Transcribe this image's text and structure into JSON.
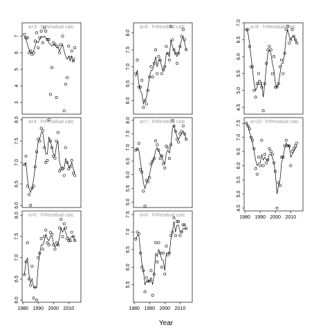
{
  "xlabel": "Year",
  "chart_data": [
    {
      "type": "line",
      "title": "a=3 : f=Residual catc",
      "xlim": [
        1979.5,
        2018
      ],
      "ylim": [
        2.3,
        7.8
      ],
      "yticks": [
        3,
        4,
        5,
        6,
        7
      ],
      "x": [
        1981,
        1982,
        1983,
        1984,
        1985,
        1986,
        1987,
        1988,
        1989,
        1990,
        1991,
        1992,
        1993,
        1994,
        1995,
        1996,
        1997,
        1998,
        1999,
        2000,
        2001,
        2002,
        2003,
        2004,
        2005,
        2006,
        2007,
        2008,
        2009,
        2010,
        2011,
        2012,
        2013,
        2014
      ],
      "series": [
        {
          "style": "points",
          "color": "#000000",
          "values": [
            7.1,
            6.9,
            6.9,
            6.0,
            6.1,
            5.9,
            6.0,
            6.7,
            7.2,
            6.3,
            6.9,
            7.3,
            6.6,
            7.5,
            7.3,
            6.8,
            6.8,
            3.5,
            5.1,
            6.6,
            6.5,
            3.3,
            6.4,
            6.0,
            6.5,
            7.0,
            2.5,
            4.1,
            4.5,
            6.4,
            5.7,
            6.1,
            5.5,
            6.3
          ]
        },
        {
          "style": "line",
          "color": "#000000",
          "values": [
            7.0,
            6.8,
            6.5,
            6.2,
            6.0,
            6.0,
            6.1,
            6.4,
            6.7,
            6.6,
            6.8,
            7.0,
            6.9,
            7.0,
            6.9,
            6.8,
            6.6,
            6.5,
            6.4,
            6.5,
            6.5,
            6.3,
            6.3,
            6.1,
            6.3,
            6.5,
            6.1,
            5.8,
            5.6,
            5.8,
            5.5,
            5.8,
            5.5,
            5.7
          ]
        }
      ]
    },
    {
      "type": "line",
      "title": "a=4 : f=Residual catc",
      "xlim": [
        1979.5,
        2018
      ],
      "ylim": [
        5.95,
        8.05
      ],
      "yticks": [
        {
          "value": 6,
          "label": "6.0"
        },
        6.5,
        {
          "value": 7,
          "label": "7.0"
        },
        7.5,
        {
          "value": 8,
          "label": "8.0"
        }
      ],
      "x": [
        1981,
        1982,
        1983,
        1984,
        1985,
        1986,
        1987,
        1988,
        1989,
        1990,
        1991,
        1992,
        1993,
        1994,
        1995,
        1996,
        1997,
        1998,
        1999,
        2000,
        2001,
        2002,
        2003,
        2004,
        2005,
        2006,
        2007,
        2008,
        2009,
        2010,
        2011,
        2012,
        2013,
        2014
      ],
      "series": [
        {
          "style": "points",
          "color": "#000000",
          "values": [
            6.95,
            7.15,
            6.45,
            6.25,
            6.0,
            6.4,
            6.45,
            6.9,
            7.25,
            7.55,
            7.5,
            7.8,
            7.75,
            7.35,
            7.0,
            7.05,
            8.0,
            7.5,
            7.35,
            7.15,
            7.1,
            7.5,
            7.7,
            6.8,
            6.85,
            6.85,
            6.7,
            7.35,
            7.0,
            6.85,
            6.9,
            7.05,
            6.75,
            6.7
          ]
        },
        {
          "style": "line",
          "color": "#000000",
          "values": [
            6.95,
            7.0,
            6.6,
            6.4,
            6.3,
            6.4,
            6.6,
            6.9,
            7.2,
            7.5,
            7.55,
            7.7,
            7.7,
            7.45,
            7.2,
            7.2,
            7.6,
            7.5,
            7.35,
            7.2,
            7.15,
            7.4,
            7.5,
            7.0,
            6.9,
            6.9,
            6.85,
            7.1,
            7.0,
            6.9,
            6.9,
            7.0,
            6.85,
            6.75
          ]
        }
      ]
    },
    {
      "type": "line",
      "title": "a=5 : f=Residual catc",
      "xlim": [
        1979.5,
        2018
      ],
      "ylim": [
        5.95,
        8.1
      ],
      "yticks": [
        {
          "value": 6,
          "label": "6.0"
        },
        6.5,
        {
          "value": 7,
          "label": "7.0"
        },
        7.5,
        {
          "value": 8,
          "label": "8.0"
        }
      ],
      "xticks": [
        1980,
        1990,
        2000,
        2010
      ],
      "x": [
        1981,
        1982,
        1983,
        1984,
        1985,
        1986,
        1987,
        1988,
        1989,
        1990,
        1991,
        1992,
        1993,
        1994,
        1995,
        1996,
        1997,
        1998,
        1999,
        2000,
        2001,
        2002,
        2003,
        2004,
        2005,
        2006,
        2007,
        2008,
        2009,
        2010,
        2011,
        2012,
        2013,
        2014
      ],
      "series": [
        {
          "style": "points",
          "color": "#000000",
          "values": [
            6.6,
            6.9,
            7.35,
            6.5,
            6.35,
            6.8,
            6.05,
            6.3,
            6.0,
            7.0,
            7.1,
            7.45,
            7.2,
            7.5,
            7.65,
            7.35,
            7.3,
            7.6,
            7.55,
            7.3,
            7.2,
            7.35,
            7.3,
            7.7,
            7.9,
            7.5,
            7.8,
            7.7,
            7.45,
            7.4,
            7.4,
            7.6,
            7.5,
            7.4
          ]
        },
        {
          "style": "line",
          "color": "#000000",
          "values": [
            6.6,
            6.9,
            7.0,
            6.6,
            6.4,
            6.5,
            6.3,
            6.3,
            6.3,
            6.8,
            7.1,
            7.3,
            7.3,
            7.4,
            7.55,
            7.45,
            7.4,
            7.5,
            7.5,
            7.35,
            7.25,
            7.3,
            7.3,
            7.5,
            7.7,
            7.6,
            7.7,
            7.6,
            7.5,
            7.45,
            7.45,
            7.5,
            7.5,
            7.4
          ]
        }
      ]
    },
    {
      "type": "line",
      "title": "a=6 : f=Residual catc",
      "xlim": [
        1979.5,
        2018
      ],
      "ylim": [
        5.6,
        8.3
      ],
      "yticks": [
        {
          "value": 6,
          "label": "6.0"
        },
        6.5,
        {
          "value": 7,
          "label": "7.0"
        },
        7.5,
        {
          "value": 8,
          "label": "8.0"
        }
      ],
      "x": [
        1981,
        1982,
        1983,
        1984,
        1985,
        1986,
        1987,
        1988,
        1989,
        1990,
        1991,
        1992,
        1993,
        1994,
        1995,
        1996,
        1997,
        1998,
        1999,
        2000,
        2001,
        2002,
        2003,
        2004,
        2005,
        2006,
        2007,
        2008,
        2009,
        2010,
        2011,
        2012,
        2013,
        2014
      ],
      "series": [
        {
          "style": "points",
          "color": "#000000",
          "values": [
            6.8,
            7.2,
            6.4,
            6.4,
            6.6,
            5.8,
            6.0,
            5.9,
            6.3,
            6.7,
            7.0,
            6.7,
            7.1,
            7.5,
            6.8,
            7.3,
            7.2,
            6.8,
            6.9,
            7.0,
            7.6,
            7.4,
            7.2,
            8.2,
            7.8,
            7.5,
            7.4,
            7.1,
            7.4,
            7.6,
            7.9,
            8.1,
            7.8,
            7.5
          ]
        },
        {
          "style": "line",
          "color": "#000000",
          "values": [
            6.7,
            6.9,
            6.5,
            6.3,
            6.2,
            5.9,
            6.0,
            6.1,
            6.4,
            6.7,
            6.9,
            6.9,
            7.1,
            7.3,
            7.0,
            7.2,
            7.2,
            7.0,
            6.9,
            7.0,
            7.4,
            7.4,
            7.3,
            7.8,
            7.6,
            7.5,
            7.4,
            7.3,
            7.4,
            7.6,
            7.8,
            7.9,
            7.7,
            7.5
          ]
        }
      ]
    },
    {
      "type": "line",
      "title": "a=7 : f=Residual catc",
      "xlim": [
        1979.5,
        2018
      ],
      "ylim": [
        4.8,
        8.1
      ],
      "yticks": [
        {
          "value": 5,
          "label": "5.0"
        },
        5.5,
        {
          "value": 6,
          "label": "6.0"
        },
        6.5,
        {
          "value": 7,
          "label": "7.0"
        },
        7.5,
        {
          "value": 8,
          "label": "8.0"
        }
      ],
      "x": [
        1981,
        1982,
        1983,
        1984,
        1985,
        1986,
        1987,
        1988,
        1989,
        1990,
        1991,
        1992,
        1993,
        1994,
        1995,
        1996,
        1997,
        1998,
        1999,
        2000,
        2001,
        2002,
        2003,
        2004,
        2005,
        2006,
        2007,
        2008,
        2009,
        2010,
        2011,
        2012,
        2013,
        2014
      ],
      "series": [
        {
          "style": "points",
          "color": "#000000",
          "values": [
            6.9,
            6.95,
            7.15,
            6.2,
            6.1,
            5.4,
            4.85,
            5.8,
            5.75,
            5.9,
            6.4,
            6.5,
            6.6,
            7.25,
            7.1,
            6.9,
            6.6,
            6.7,
            6.4,
            6.25,
            7.05,
            7.0,
            6.6,
            7.1,
            8.0,
            7.8,
            7.6,
            7.3,
            7.2,
            7.5,
            7.6,
            7.8,
            7.5,
            7.3
          ]
        },
        {
          "style": "line",
          "color": "#000000",
          "values": [
            6.9,
            6.95,
            6.9,
            6.5,
            6.1,
            5.7,
            5.5,
            5.7,
            5.8,
            6.0,
            6.3,
            6.5,
            6.6,
            6.9,
            7.0,
            6.9,
            6.7,
            6.7,
            6.5,
            6.4,
            6.8,
            6.9,
            6.8,
            7.1,
            7.7,
            7.8,
            7.6,
            7.4,
            7.3,
            7.4,
            7.5,
            7.6,
            7.5,
            7.3
          ]
        }
      ]
    },
    {
      "type": "line",
      "title": "a=8 : f=Residual catc",
      "xlim": [
        1979.5,
        2018
      ],
      "ylim": [
        5.0,
        7.6
      ],
      "yticks": [
        5.5,
        {
          "value": 6,
          "label": "6.0"
        },
        6.5,
        {
          "value": 7,
          "label": "7.0"
        },
        7.5
      ],
      "xticks": [
        1980,
        1990,
        2000,
        2010
      ],
      "x": [
        1981,
        1982,
        1983,
        1984,
        1985,
        1986,
        1987,
        1988,
        1989,
        1990,
        1991,
        1992,
        1993,
        1994,
        1995,
        1996,
        1997,
        1998,
        1999,
        2000,
        2001,
        2002,
        2003,
        2004,
        2005,
        2006,
        2007,
        2008,
        2009,
        2010,
        2011,
        2012,
        2013,
        2014
      ],
      "series": [
        {
          "style": "points",
          "color": "#000000",
          "values": [
            6.8,
            7.0,
            6.95,
            6.4,
            6.0,
            5.9,
            5.3,
            5.7,
            5.6,
            5.6,
            5.9,
            5.2,
            5.8,
            6.7,
            6.15,
            6.7,
            6.4,
            6.0,
            6.4,
            5.8,
            6.6,
            6.35,
            6.4,
            6.9,
            7.0,
            7.4,
            6.9,
            7.3,
            7.3,
            6.9,
            7.0,
            7.2,
            7.2,
            7.1
          ]
        },
        {
          "style": "line",
          "color": "#000000",
          "values": [
            6.8,
            6.9,
            6.9,
            6.5,
            6.1,
            5.9,
            5.5,
            5.6,
            5.6,
            5.6,
            5.7,
            5.5,
            5.8,
            6.4,
            6.3,
            6.5,
            6.4,
            6.2,
            6.2,
            5.9,
            6.4,
            6.4,
            6.4,
            6.8,
            7.0,
            7.3,
            7.0,
            7.2,
            7.2,
            7.0,
            7.0,
            7.1,
            7.1,
            7.1
          ]
        }
      ]
    },
    {
      "type": "line",
      "title": "a=9 : f=Residual catc",
      "xlim": [
        1979.5,
        2018
      ],
      "ylim": [
        4.3,
        7.0
      ],
      "yticks": [
        4.5,
        {
          "value": 5,
          "label": "5.0"
        },
        5.5,
        {
          "value": 6,
          "label": "6.0"
        },
        6.5,
        {
          "value": 7,
          "label": "7.0"
        }
      ],
      "x": [
        1981,
        1982,
        1983,
        1984,
        1985,
        1986,
        1987,
        1988,
        1989,
        1990,
        1991,
        1992,
        1993,
        1994,
        1995,
        1996,
        1997,
        1998,
        1999,
        2000,
        2001,
        2002,
        2003,
        2004,
        2005,
        2006,
        2007,
        2008,
        2009,
        2010,
        2011,
        2012,
        2013,
        2014
      ],
      "series": [
        {
          "style": "points",
          "color": "#000000",
          "values": [
            6.8,
            6.8,
            6.3,
            5.7,
            5.7,
            5.0,
            4.8,
            5.2,
            5.5,
            5.2,
            5.1,
            4.4,
            5.2,
            5.8,
            6.2,
            6.3,
            6.2,
            5.5,
            6.0,
            5.1,
            5.1,
            5.2,
            5.7,
            5.9,
            5.5,
            6.1,
            6.8,
            6.9,
            6.4,
            6.5,
            6.8,
            6.6,
            6.5,
            6.4
          ]
        },
        {
          "style": "line",
          "color": "#000000",
          "values": [
            6.8,
            6.7,
            6.4,
            6.0,
            5.6,
            5.2,
            5.0,
            5.1,
            5.3,
            5.3,
            5.2,
            4.8,
            5.2,
            5.7,
            6.1,
            6.2,
            6.1,
            5.8,
            5.6,
            5.2,
            5.1,
            5.2,
            5.5,
            5.8,
            5.8,
            6.1,
            6.6,
            6.8,
            6.6,
            6.5,
            6.6,
            6.6,
            6.5,
            6.4
          ]
        }
      ]
    },
    {
      "type": "line",
      "title": "a=10 : f=Residual catc",
      "xlim": [
        1979.5,
        2018
      ],
      "ylim": [
        4.4,
        7.7
      ],
      "yticks": [
        4.5,
        {
          "value": 5,
          "label": "5.0"
        },
        5.5,
        {
          "value": 6,
          "label": "6.0"
        },
        6.5,
        {
          "value": 7,
          "label": "7.0"
        },
        7.5
      ],
      "xticks": [
        1980,
        1990,
        2000,
        2010
      ],
      "x": [
        1981,
        1982,
        1983,
        1984,
        1985,
        1986,
        1987,
        1988,
        1989,
        1990,
        1991,
        1992,
        1993,
        1994,
        1995,
        1996,
        1997,
        1998,
        1999,
        2000,
        2001,
        2002,
        2003,
        2004,
        2005,
        2006,
        2007,
        2008,
        2009,
        2010,
        2011,
        2012,
        2013,
        2014
      ],
      "series": [
        {
          "style": "points",
          "color": "#000000",
          "values": [
            7.5,
            7.4,
            7.3,
            7.0,
            6.9,
            6.6,
            5.9,
            5.7,
            6.3,
            6.0,
            6.9,
            6.0,
            6.4,
            6.1,
            6.2,
            6.6,
            6.5,
            6.4,
            6.1,
            5.8,
            4.5,
            5.4,
            5.3,
            6.3,
            6.3,
            6.7,
            6.9,
            6.7,
            6.7,
            6.0,
            6.5,
            6.6,
            6.7,
            6.8
          ]
        },
        {
          "style": "line",
          "color": "#000000",
          "values": [
            7.5,
            7.4,
            7.2,
            7.0,
            6.8,
            6.5,
            6.2,
            6.0,
            6.1,
            6.1,
            6.4,
            6.2,
            6.3,
            6.2,
            6.2,
            6.4,
            6.4,
            6.3,
            6.1,
            5.7,
            5.0,
            5.3,
            5.5,
            6.1,
            6.3,
            6.6,
            6.8,
            6.7,
            6.7,
            6.3,
            6.4,
            6.5,
            6.6,
            6.7
          ]
        }
      ]
    }
  ]
}
